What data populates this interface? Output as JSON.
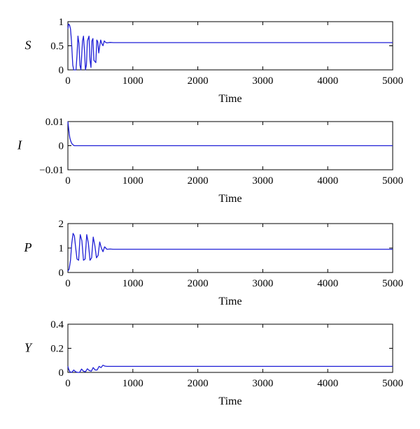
{
  "line_color": "#1f1fd6",
  "chart_data": [
    {
      "type": "line",
      "ylabel": "S",
      "xlabel": "Time",
      "xlim": [
        0,
        5000
      ],
      "ylim": [
        0,
        1
      ],
      "xticks": [
        0,
        1000,
        2000,
        3000,
        4000,
        5000
      ],
      "yticks": [
        0,
        0.5,
        1
      ],
      "ytick_labels": [
        "0",
        "0.5",
        "1"
      ],
      "grid": false,
      "series": [
        {
          "x": [
            0,
            10,
            25,
            40,
            55,
            75,
            90,
            110,
            125,
            140,
            155,
            170,
            185,
            200,
            225,
            240,
            255,
            270,
            285,
            300,
            325,
            340,
            355,
            370,
            385,
            400,
            430,
            445,
            460,
            475,
            490,
            505,
            520,
            540,
            560,
            580,
            600,
            650,
            700,
            1000,
            2000,
            3000,
            4000,
            5000
          ],
          "y": [
            0.85,
            0.95,
            0.93,
            0.85,
            0.6,
            0.1,
            0.0,
            0.0,
            0.0,
            0.3,
            0.7,
            0.55,
            0.1,
            0.0,
            0.6,
            0.7,
            0.4,
            0.0,
            0.1,
            0.6,
            0.7,
            0.2,
            0.05,
            0.6,
            0.65,
            0.2,
            0.15,
            0.62,
            0.58,
            0.35,
            0.5,
            0.62,
            0.55,
            0.5,
            0.6,
            0.57,
            0.56,
            0.57,
            0.565,
            0.565,
            0.565,
            0.565,
            0.565,
            0.565
          ]
        }
      ]
    },
    {
      "type": "line",
      "ylabel": "I",
      "xlabel": "Time",
      "xlim": [
        0,
        5000
      ],
      "ylim": [
        -0.01,
        0.01
      ],
      "xticks": [
        0,
        1000,
        2000,
        3000,
        4000,
        5000
      ],
      "yticks": [
        -0.01,
        0,
        0.01
      ],
      "ytick_labels": [
        "−0.01",
        "0",
        "0.01"
      ],
      "grid": false,
      "series": [
        {
          "x": [
            0,
            10,
            20,
            30,
            45,
            60,
            80,
            100,
            150,
            5000
          ],
          "y": [
            0.01,
            0.0075,
            0.005,
            0.0032,
            0.0018,
            0.0009,
            0.0003,
            0.0,
            0.0,
            0.0
          ]
        }
      ]
    },
    {
      "type": "line",
      "ylabel": "P",
      "xlabel": "Time",
      "xlim": [
        0,
        5000
      ],
      "ylim": [
        0,
        2
      ],
      "xticks": [
        0,
        1000,
        2000,
        3000,
        4000,
        5000
      ],
      "yticks": [
        0,
        1,
        2
      ],
      "ytick_labels": [
        "0",
        "1",
        "2"
      ],
      "grid": false,
      "series": [
        {
          "x": [
            0,
            20,
            40,
            60,
            80,
            100,
            120,
            140,
            165,
            190,
            215,
            240,
            265,
            290,
            315,
            340,
            365,
            390,
            415,
            440,
            465,
            490,
            515,
            540,
            565,
            600,
            650,
            700,
            1000,
            2000,
            3000,
            4000,
            5000
          ],
          "y": [
            0.05,
            0.15,
            0.5,
            1.2,
            1.6,
            1.5,
            1.0,
            0.55,
            0.5,
            1.55,
            1.3,
            0.5,
            0.55,
            1.55,
            1.2,
            0.5,
            0.6,
            1.45,
            1.1,
            0.6,
            0.7,
            1.25,
            1.0,
            0.85,
            1.05,
            0.95,
            0.96,
            0.95,
            0.95,
            0.95,
            0.95,
            0.95,
            0.95
          ]
        }
      ]
    },
    {
      "type": "line",
      "ylabel": "Y",
      "xlabel": "Time",
      "xlim": [
        0,
        5000
      ],
      "ylim": [
        0,
        0.4
      ],
      "xticks": [
        0,
        1000,
        2000,
        3000,
        4000,
        5000
      ],
      "yticks": [
        0,
        0.2,
        0.4
      ],
      "ytick_labels": [
        "0",
        "0.2",
        "0.4"
      ],
      "grid": false,
      "series": [
        {
          "x": [
            0,
            10,
            30,
            60,
            90,
            120,
            150,
            180,
            210,
            240,
            270,
            300,
            330,
            360,
            390,
            420,
            450,
            480,
            510,
            540,
            570,
            600,
            700,
            1000,
            2000,
            3000,
            4000,
            5000
          ],
          "y": [
            0.05,
            0.03,
            0.005,
            0.0,
            0.02,
            0.005,
            0.0,
            0.0,
            0.028,
            0.01,
            0.005,
            0.03,
            0.015,
            0.01,
            0.04,
            0.02,
            0.02,
            0.05,
            0.04,
            0.06,
            0.052,
            0.05,
            0.05,
            0.05,
            0.05,
            0.05,
            0.05,
            0.05
          ]
        }
      ]
    }
  ]
}
